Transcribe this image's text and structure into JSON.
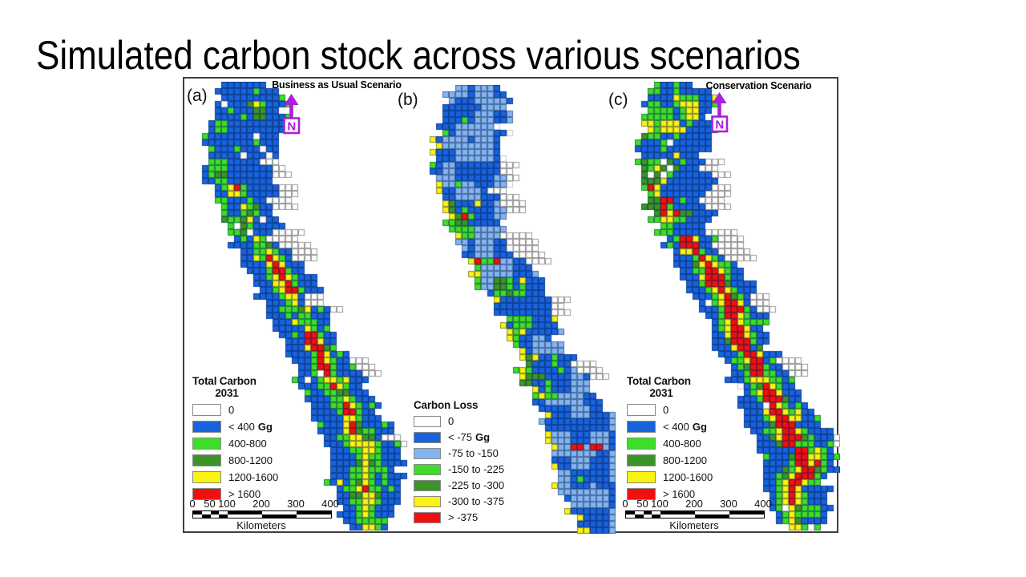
{
  "slide": {
    "title": "Simulated carbon stock across various scenarios"
  },
  "figure": {
    "panels": [
      {
        "key": "a",
        "label": "(a)",
        "title": "Business as Usual Scenario",
        "north_label": "N"
      },
      {
        "key": "b",
        "label": "(b)",
        "title": "",
        "north_label": ""
      },
      {
        "key": "c",
        "label": "(c)",
        "title": "Conservation Scenario",
        "north_label": "N"
      }
    ],
    "legend_carbon": {
      "title_line1": "Total Carbon",
      "title_line2": "2031",
      "rows": [
        {
          "color_key": "white",
          "label": "0",
          "unit": ""
        },
        {
          "color_key": "blue",
          "label": "< 400",
          "unit": "Gg"
        },
        {
          "color_key": "green",
          "label": "400-800",
          "unit": ""
        },
        {
          "color_key": "darkgreen",
          "label": "800-1200",
          "unit": ""
        },
        {
          "color_key": "yellow",
          "label": "1200-1600",
          "unit": ""
        },
        {
          "color_key": "red",
          "label": "> 1600",
          "unit": ""
        }
      ]
    },
    "legend_loss": {
      "title": "Carbon Loss",
      "rows": [
        {
          "color_key": "white",
          "label": "0",
          "unit": ""
        },
        {
          "color_key": "blue",
          "label": "< -75",
          "unit": "Gg"
        },
        {
          "color_key": "lightblue",
          "label": "-75 to -150",
          "unit": ""
        },
        {
          "color_key": "green",
          "label": "-150 to -225",
          "unit": ""
        },
        {
          "color_key": "darkgreen",
          "label": "-225 to -300",
          "unit": ""
        },
        {
          "color_key": "yellow",
          "label": "-300 to -375",
          "unit": ""
        },
        {
          "color_key": "red",
          "label": "> -375",
          "unit": ""
        }
      ]
    },
    "scalebar": {
      "ticks": [
        "0",
        "50",
        "100",
        "200",
        "300",
        "400"
      ],
      "caption": "Kilometers"
    },
    "palette": {
      "white": "#FFFFFF",
      "blue": "#1763DC",
      "lightblue": "#82B4F0",
      "green": "#3CDE28",
      "darkgreen": "#3B9428",
      "yellow": "#F8F312",
      "red": "#F01010",
      "grid_stroke": "rgba(6,24,72,0.45)",
      "lake_stroke": "#9A9A9A",
      "hole_stroke": "#C8C8C8",
      "north_arrow": "#AC1FD8",
      "border": "#3F3F3F"
    },
    "map_gen": {
      "cell": 8,
      "cols": 34,
      "rows": 70,
      "keyframes": [
        [
          0,
          9,
          3.5
        ],
        [
          3,
          9.5,
          5.5
        ],
        [
          6,
          8.5,
          5.5
        ],
        [
          9,
          7.5,
          5
        ],
        [
          12,
          7.5,
          5
        ],
        [
          15,
          8,
          5
        ],
        [
          18,
          8,
          4.5
        ],
        [
          21,
          9,
          4
        ],
        [
          24,
          10,
          3.5
        ],
        [
          27,
          12,
          4
        ],
        [
          30,
          14,
          4.5
        ],
        [
          33,
          15.5,
          4.5
        ],
        [
          36,
          17,
          4
        ],
        [
          39,
          18,
          4
        ],
        [
          42,
          19.5,
          4
        ],
        [
          45,
          21,
          4.5
        ],
        [
          48,
          22.5,
          4.5
        ],
        [
          51,
          24,
          5
        ],
        [
          54,
          25.5,
          5.5
        ],
        [
          57,
          27,
          6
        ],
        [
          60,
          27.5,
          5.5
        ],
        [
          63,
          27,
          5
        ],
        [
          66,
          27.5,
          4
        ],
        [
          69,
          27.5,
          2.5
        ]
      ],
      "lakes": [
        {
          "r0": 12,
          "r1": 14,
          "d": 2
        },
        {
          "r0": 16,
          "r1": 19,
          "d": 3
        },
        {
          "r0": 23,
          "r1": 27,
          "d": 4
        },
        {
          "r0": 33,
          "r1": 35,
          "d": 2
        },
        {
          "r0": 43,
          "r1": 45,
          "d": 3
        },
        {
          "r0": 55,
          "r1": 56,
          "d": 2
        }
      ],
      "panel_params": {
        "a": {
          "mode": "stock",
          "seed": 3,
          "boost": 1.0,
          "max_col": 33
        },
        "b": {
          "mode": "loss",
          "seed": 11,
          "boost": 1.0,
          "max_col": 30
        },
        "c": {
          "mode": "stock",
          "seed": 5,
          "boost": 1.22,
          "max_col": 33
        }
      }
    }
  }
}
